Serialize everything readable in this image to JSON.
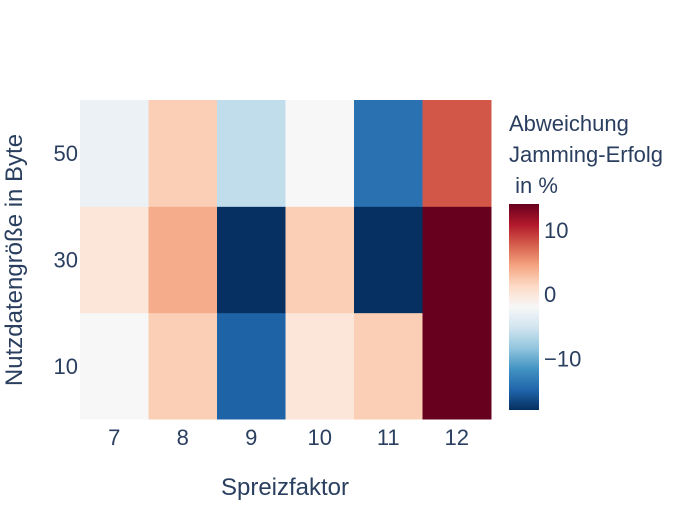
{
  "chart_data": {
    "type": "heatmap",
    "xlabel": "Spreizfaktor",
    "ylabel": "Nutzdatengröße in Byte",
    "x": [
      7,
      8,
      9,
      10,
      11,
      12
    ],
    "y": [
      10,
      30,
      50
    ],
    "z": [
      [
        -2,
        2,
        -15,
        0,
        2,
        14
      ],
      [
        0,
        4,
        -18,
        2,
        -18,
        14
      ],
      [
        -3,
        2,
        -6,
        -2,
        -14,
        8
      ]
    ],
    "colorbar": {
      "title_lines": [
        "Abweichung",
        "Jamming-Erfolg",
        " in %"
      ],
      "tickvals": [
        10,
        0,
        -10
      ],
      "ticklabels": [
        "10",
        "0",
        "−10"
      ],
      "zmin": -18,
      "zmax": 14
    },
    "colorscale": "RdBu (reversed)",
    "colors": [
      "#053061",
      "#2166ac",
      "#4393c3",
      "#92c5de",
      "#d1e5f0",
      "#f7f7f7",
      "#fddbc7",
      "#f4a582",
      "#d6604d",
      "#b2182b",
      "#67001f"
    ]
  }
}
